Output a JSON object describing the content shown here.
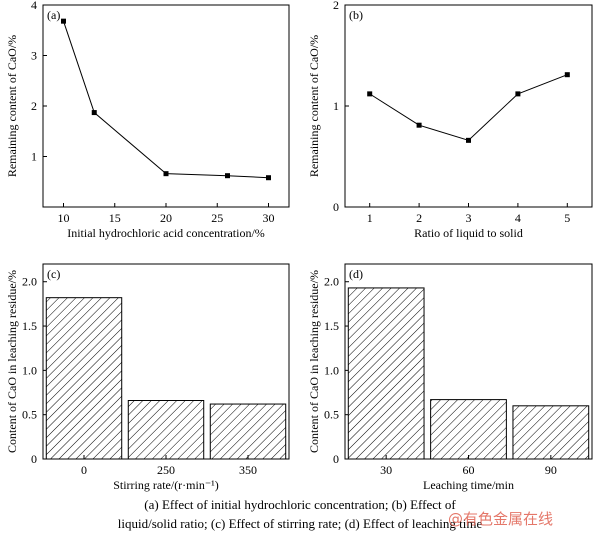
{
  "chart_data": [
    {
      "type": "line",
      "panel_label": "(a)",
      "xlabel": "Initial hydrochloric acid concentration/%",
      "ylabel": "Remaining content of CaO/%",
      "x": [
        10,
        13,
        20,
        26,
        30
      ],
      "y": [
        3.68,
        1.87,
        0.66,
        0.62,
        0.58
      ],
      "xlim": [
        8,
        32
      ],
      "ylim": [
        0,
        4
      ],
      "xticks": [
        "10",
        "15",
        "20",
        "25",
        "30"
      ],
      "yticks": [
        "1",
        "2",
        "3",
        "4"
      ],
      "marker": "square",
      "color": "#000000"
    },
    {
      "type": "line",
      "panel_label": "(b)",
      "xlabel": "Ratio of liquid to solid",
      "ylabel": "Remaining content of CaO/%",
      "x": [
        1,
        2,
        3,
        4,
        5
      ],
      "y": [
        1.12,
        0.81,
        0.66,
        1.12,
        1.31
      ],
      "xlim": [
        0.5,
        5.5
      ],
      "ylim": [
        0,
        2
      ],
      "xticks": [
        "1",
        "2",
        "3",
        "4",
        "5"
      ],
      "yticks": [
        "0",
        "1",
        "2"
      ],
      "marker": "square",
      "color": "#000000"
    },
    {
      "type": "bar",
      "panel_label": "(c)",
      "xlabel": "Stirring rate/(r·min⁻¹)",
      "ylabel": "Content of CaO in leaching residue/%",
      "categories": [
        "0",
        "250",
        "350"
      ],
      "values": [
        1.82,
        0.66,
        0.62
      ],
      "ylim": [
        0,
        2.2
      ],
      "yticks": [
        "0",
        "0.5",
        "1.0",
        "1.5",
        "2.0"
      ],
      "fill": "hatched"
    },
    {
      "type": "bar",
      "panel_label": "(d)",
      "xlabel": "Leaching time/min",
      "ylabel": "Content of CaO in leaching residue/%",
      "categories": [
        "30",
        "60",
        "90"
      ],
      "values": [
        1.93,
        0.67,
        0.6
      ],
      "ylim": [
        0,
        2.2
      ],
      "yticks": [
        "0",
        "0.5",
        "1.0",
        "1.5",
        "2.0"
      ],
      "fill": "hatched"
    }
  ],
  "caption": {
    "line1": "(a) Effect of initial hydrochloric concentration; (b) Effect of",
    "line2": "liquid/solid ratio; (c) Effect of stirring rate; (d) Effect of leaching time"
  },
  "watermark": "@有色金属在线"
}
